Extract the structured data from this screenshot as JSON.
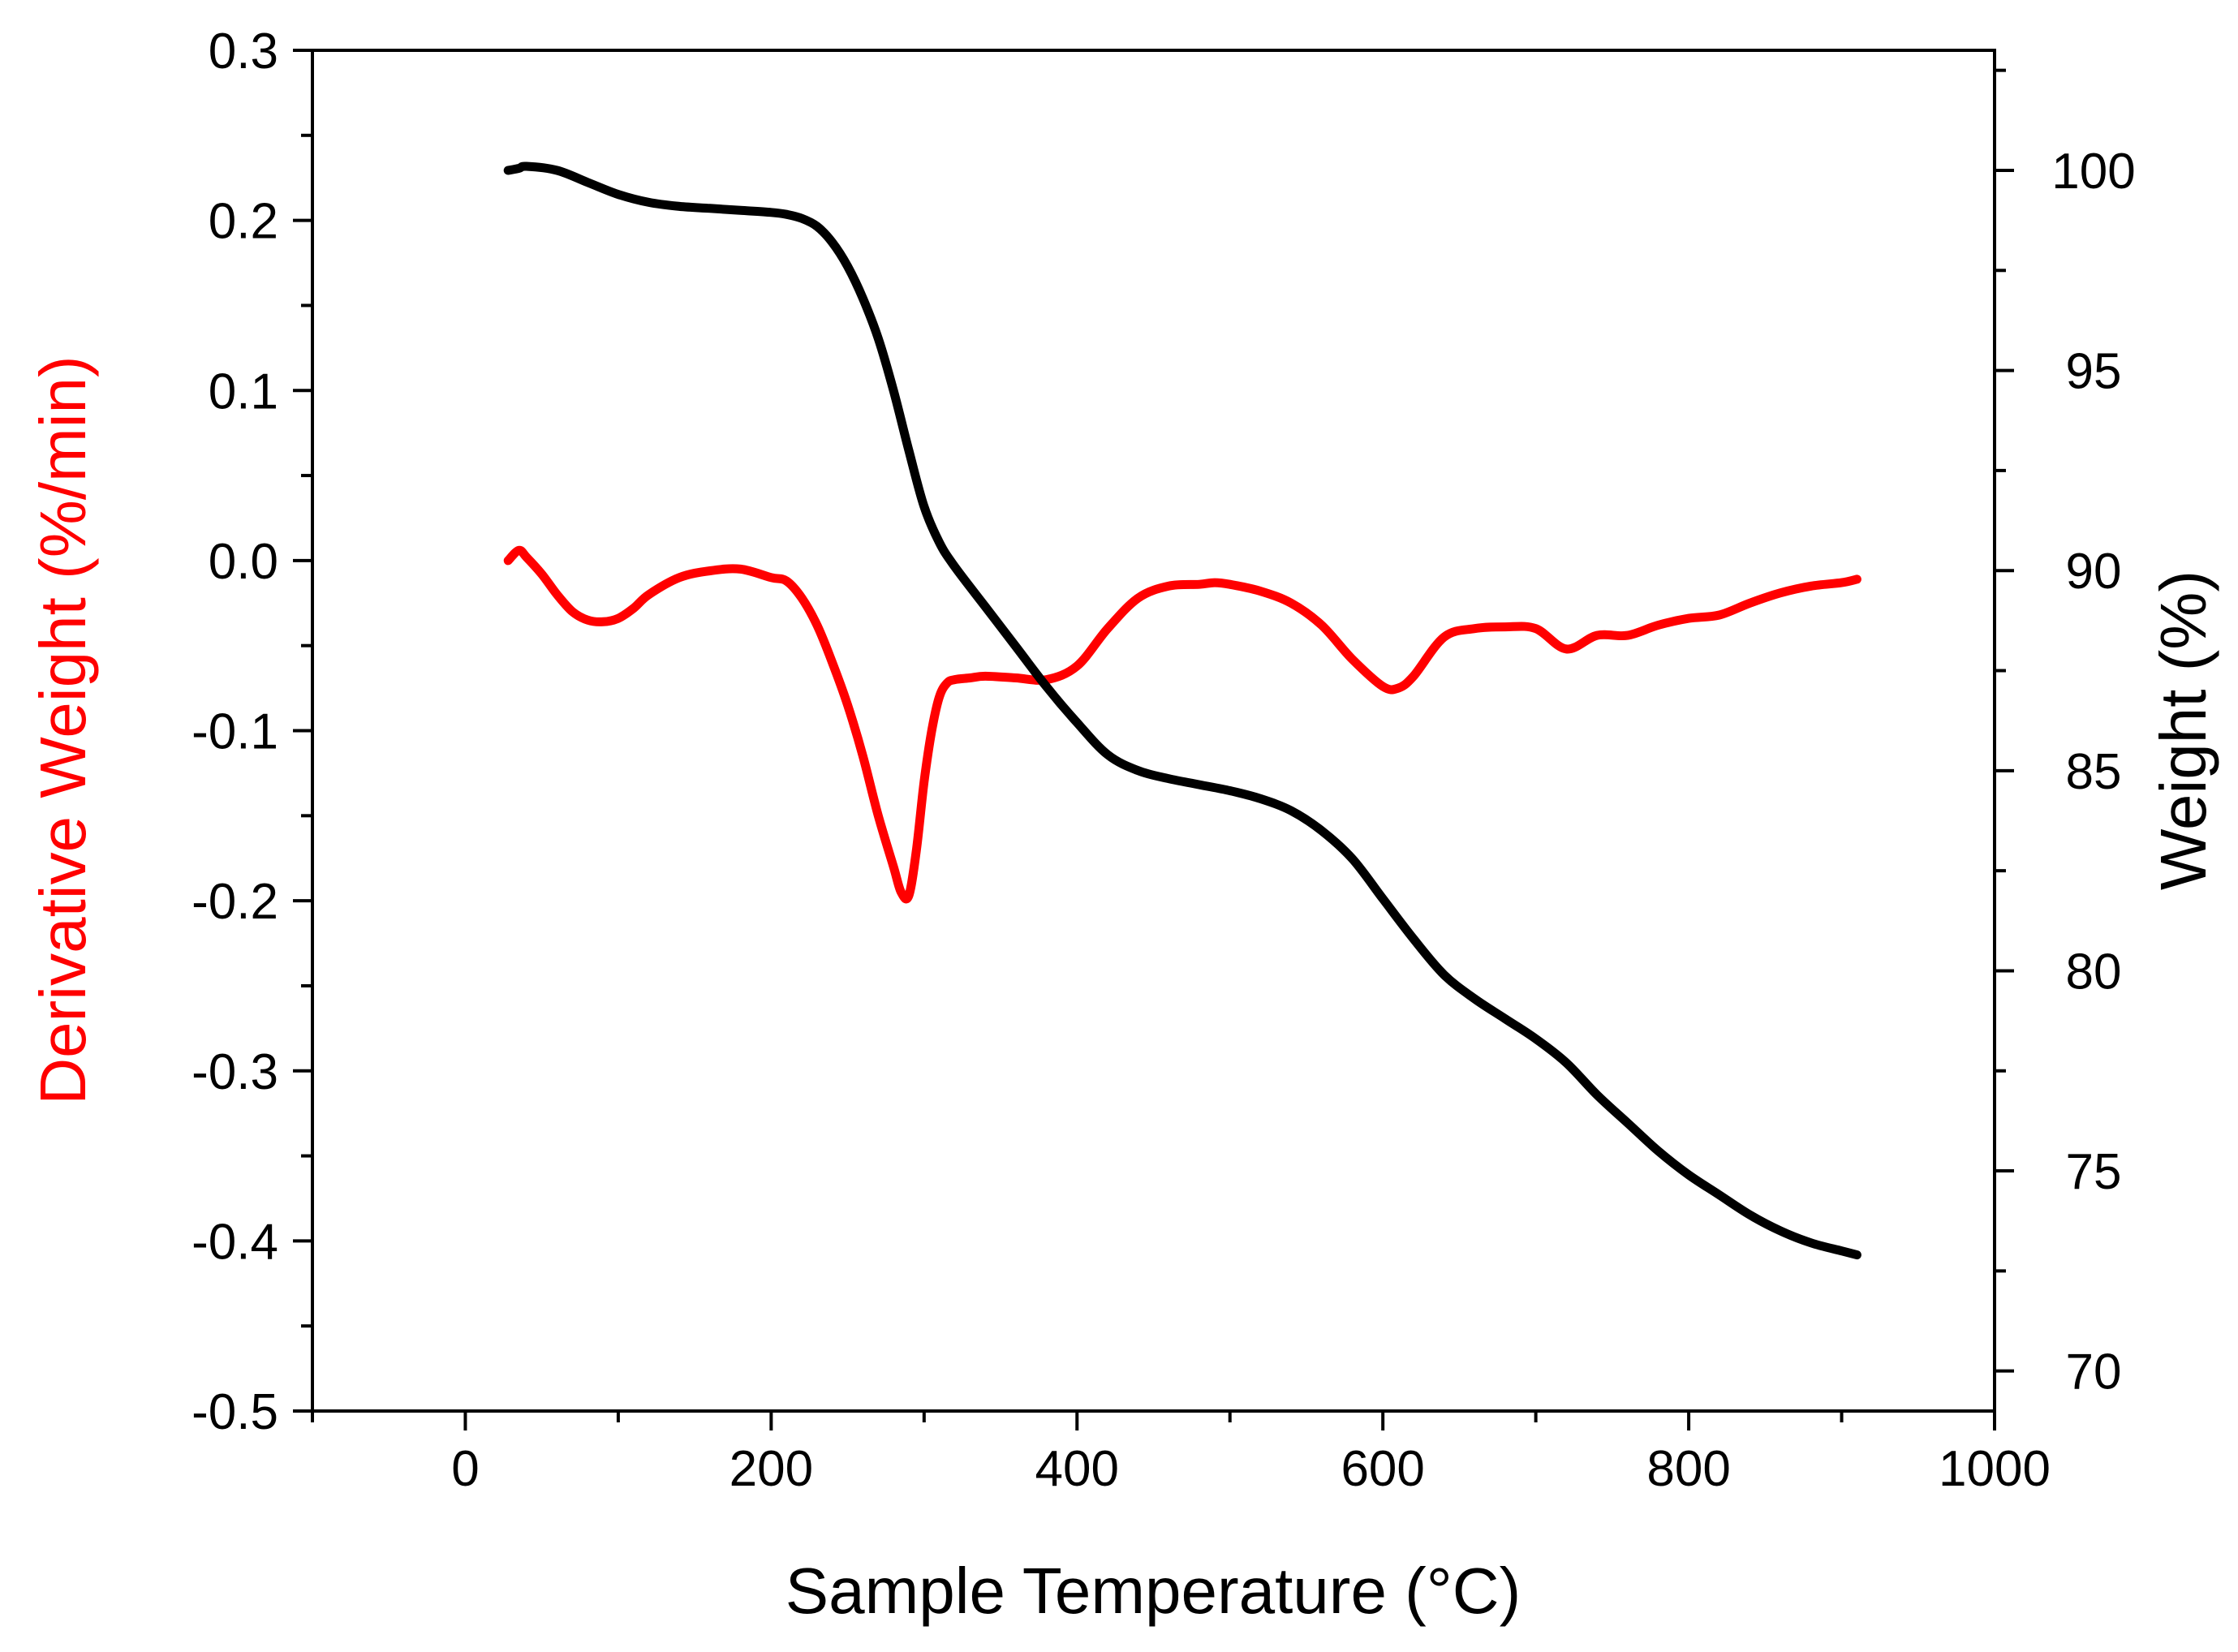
{
  "chart_data": {
    "type": "line",
    "title": "",
    "xlabel": "Sample Temperature (°C)",
    "ylabel_left": "Derivative Weight (%/min)",
    "ylabel_right": "Weight (%)",
    "xlim": [
      -100,
      1000
    ],
    "ylim_left": [
      -0.5,
      0.3
    ],
    "ylim_right": [
      69,
      103
    ],
    "x_ticks": [
      "0",
      "200",
      "400",
      "600",
      "800",
      "1000"
    ],
    "y_left_ticks": [
      "0.3",
      "0.2",
      "0.1",
      "0.0",
      "-0.1",
      "-0.2",
      "-0.3",
      "-0.4",
      "-0.5"
    ],
    "y_right_ticks": [
      "100",
      "95",
      "90",
      "85",
      "80",
      "75",
      "70"
    ],
    "colors": {
      "derivative": "#ff0000",
      "weight": "#000000",
      "axis": "#000000"
    },
    "series": [
      {
        "name": "Derivative Weight",
        "axis": "left",
        "color": "#ff0000",
        "x": [
          28,
          35,
          40,
          50,
          60,
          70,
          80,
          90,
          100,
          110,
          120,
          140,
          160,
          180,
          200,
          210,
          220,
          230,
          240,
          250,
          260,
          270,
          280,
          285,
          290,
          295,
          300,
          305,
          310,
          315,
          320,
          330,
          340,
          360,
          380,
          400,
          420,
          440,
          460,
          480,
          490,
          500,
          520,
          540,
          560,
          580,
          600,
          610,
          620,
          640,
          660,
          680,
          700,
          720,
          740,
          760,
          780,
          800,
          820,
          840,
          860,
          880,
          900,
          910
        ],
        "y": [
          0.0,
          0.006,
          0.002,
          -0.008,
          -0.02,
          -0.03,
          -0.035,
          -0.036,
          -0.034,
          -0.028,
          -0.02,
          -0.01,
          -0.006,
          -0.005,
          -0.01,
          -0.012,
          -0.022,
          -0.038,
          -0.06,
          -0.085,
          -0.115,
          -0.15,
          -0.18,
          -0.195,
          -0.197,
          -0.17,
          -0.13,
          -0.1,
          -0.08,
          -0.072,
          -0.07,
          -0.069,
          -0.068,
          -0.069,
          -0.07,
          -0.062,
          -0.04,
          -0.022,
          -0.015,
          -0.014,
          -0.013,
          -0.014,
          -0.018,
          -0.025,
          -0.038,
          -0.058,
          -0.074,
          -0.075,
          -0.068,
          -0.045,
          -0.04,
          -0.039,
          -0.04,
          -0.052,
          -0.044,
          -0.044,
          -0.038,
          -0.034,
          -0.032,
          -0.025,
          -0.019,
          -0.015,
          -0.013,
          -0.011
        ]
      },
      {
        "name": "Weight",
        "axis": "right",
        "color": "#000000",
        "x": [
          28,
          35,
          40,
          60,
          80,
          100,
          120,
          140,
          160,
          180,
          200,
          210,
          220,
          230,
          240,
          250,
          260,
          270,
          280,
          290,
          300,
          310,
          320,
          340,
          360,
          380,
          400,
          420,
          440,
          460,
          480,
          500,
          520,
          540,
          560,
          580,
          600,
          620,
          640,
          660,
          680,
          700,
          720,
          740,
          760,
          780,
          800,
          820,
          840,
          860,
          880,
          900,
          910
        ],
        "y": [
          100.0,
          100.05,
          100.1,
          100.0,
          99.7,
          99.4,
          99.2,
          99.1,
          99.05,
          99.0,
          98.95,
          98.9,
          98.8,
          98.6,
          98.2,
          97.6,
          96.8,
          95.8,
          94.5,
          93.0,
          91.6,
          90.7,
          90.1,
          89.1,
          88.1,
          87.1,
          86.2,
          85.4,
          85.0,
          84.8,
          84.65,
          84.5,
          84.3,
          84.0,
          83.5,
          82.8,
          81.8,
          80.8,
          79.9,
          79.3,
          78.8,
          78.3,
          77.7,
          76.9,
          76.2,
          75.5,
          74.9,
          74.4,
          73.9,
          73.5,
          73.2,
          73.0,
          72.9
        ]
      }
    ]
  }
}
